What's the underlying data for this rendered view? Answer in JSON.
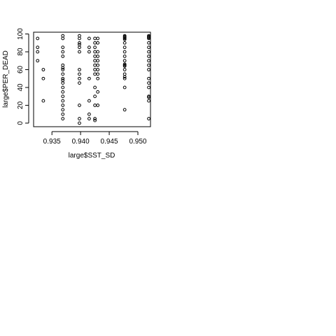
{
  "chart_data": {
    "type": "scatter",
    "title": "",
    "xlabel": "large$SST_SD",
    "ylabel": "large$PER_DEAD",
    "xlim": [
      0.9318,
      0.9522
    ],
    "ylim": [
      -4,
      102
    ],
    "xticks": [
      0.935,
      0.94,
      0.945,
      0.95
    ],
    "xtick_labels": [
      "0.935",
      "0.940",
      "0.945",
      "0.950"
    ],
    "yticks": [
      0,
      20,
      40,
      60,
      80,
      100
    ],
    "ytick_labels": [
      "0",
      "20",
      "40",
      "60",
      "80",
      "100"
    ],
    "grid": false,
    "legend": "none",
    "marker": "open-circle",
    "series": [
      {
        "x": [
          0.9325,
          0.9325,
          0.9325,
          0.9325,
          0.9335,
          0.9335,
          0.9335,
          0.9369,
          0.9369,
          0.9369,
          0.9369,
          0.9369,
          0.9369,
          0.9369,
          0.9369,
          0.9369,
          0.9369,
          0.9369,
          0.9369,
          0.9369,
          0.9369,
          0.9369,
          0.9369,
          0.9369,
          0.9369,
          0.9369,
          0.9369,
          0.9398,
          0.9398,
          0.9398,
          0.9398,
          0.9398,
          0.9398,
          0.9398,
          0.9398,
          0.9398,
          0.9398,
          0.9398,
          0.9398,
          0.9398,
          0.9415,
          0.9415,
          0.9415,
          0.9415,
          0.9415,
          0.9415,
          0.9415,
          0.9425,
          0.9425,
          0.9425,
          0.9425,
          0.9425,
          0.9425,
          0.9425,
          0.9425,
          0.9425,
          0.9425,
          0.9425,
          0.9425,
          0.9425,
          0.9425,
          0.943,
          0.943,
          0.943,
          0.943,
          0.943,
          0.943,
          0.943,
          0.943,
          0.943,
          0.943,
          0.943,
          0.9477,
          0.9477,
          0.9477,
          0.9477,
          0.9477,
          0.9477,
          0.9477,
          0.9477,
          0.9477,
          0.9477,
          0.9477,
          0.9477,
          0.9477,
          0.9477,
          0.9477,
          0.9477,
          0.9477,
          0.9477,
          0.9477,
          0.9519,
          0.9519,
          0.9519,
          0.9519,
          0.9519,
          0.9519,
          0.9519,
          0.9519,
          0.9519,
          0.9519,
          0.9519,
          0.9519,
          0.9519,
          0.9519,
          0.9519,
          0.9519,
          0.9519,
          0.9519
        ],
        "y": [
          95,
          85,
          80,
          70,
          60,
          50,
          25,
          98,
          95,
          85,
          80,
          75,
          65,
          60,
          50,
          45,
          40,
          35,
          30,
          25,
          20,
          15,
          10,
          5,
          62,
          55,
          48,
          98,
          95,
          90,
          85,
          80,
          60,
          55,
          50,
          45,
          20,
          5,
          0,
          88,
          95,
          85,
          80,
          50,
          25,
          10,
          5,
          95,
          90,
          85,
          80,
          75,
          70,
          65,
          60,
          55,
          40,
          30,
          20,
          5,
          3,
          95,
          90,
          80,
          75,
          70,
          65,
          60,
          55,
          50,
          35,
          20,
          98,
          97,
          96,
          95,
          94,
          90,
          85,
          80,
          75,
          70,
          66,
          65,
          64,
          60,
          55,
          52,
          50,
          40,
          15,
          98,
          97,
          96,
          95,
          90,
          85,
          80,
          75,
          70,
          65,
          60,
          50,
          45,
          40,
          30,
          29,
          25,
          5
        ]
      }
    ]
  }
}
